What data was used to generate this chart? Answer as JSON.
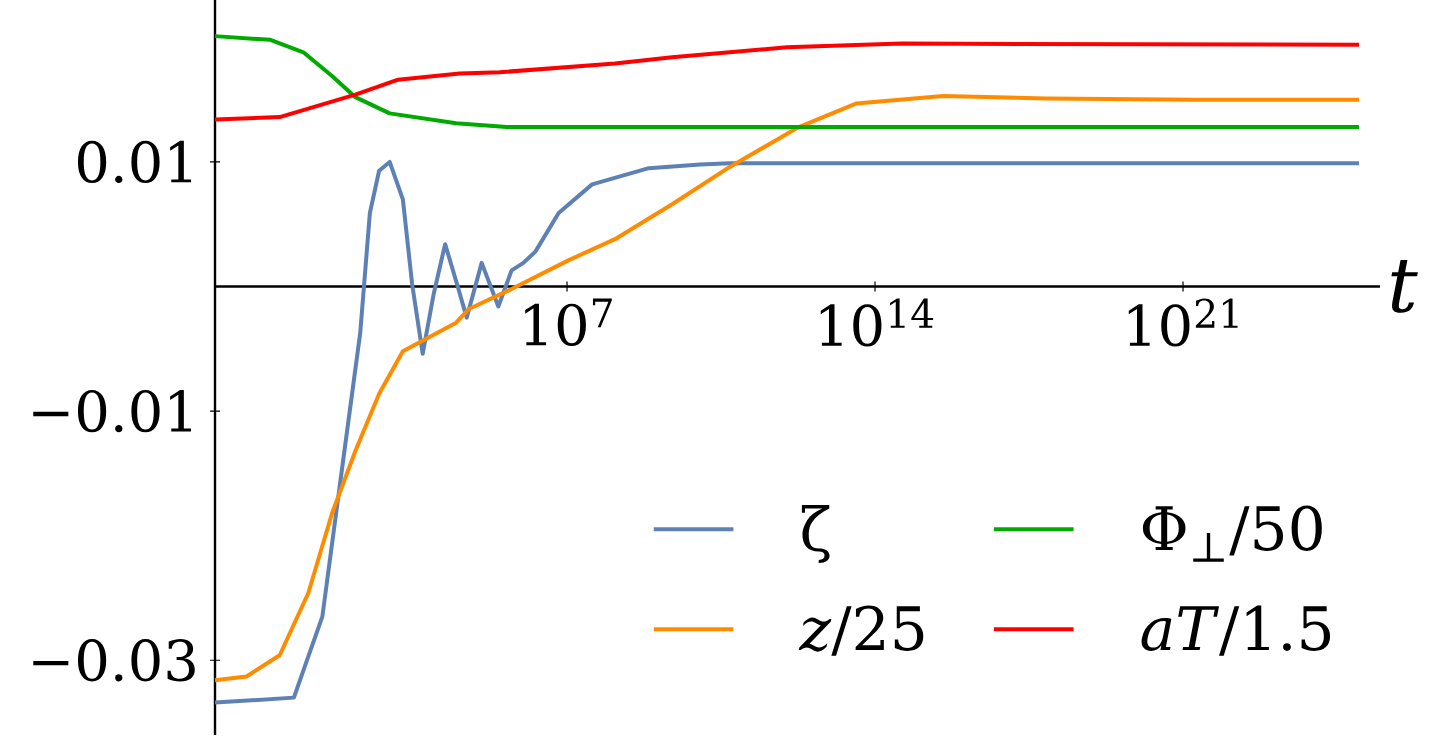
{
  "chart_data": {
    "type": "line",
    "xlabel": "t",
    "log": "x",
    "legend": "bottom right",
    "xlim": [
      0.1,
      3e+25
    ],
    "ylim": [
      -0.036,
      0.023
    ],
    "xticks": [
      {
        "value": 10000000.0,
        "label": "10$^{7}$"
      },
      {
        "value": 100000000000000.0,
        "label": "10$^{14}$"
      },
      {
        "value": 1e+21,
        "label": "10$^{21}$"
      }
    ],
    "yticks": [
      {
        "value": -0.03,
        "label": "−0.03"
      },
      {
        "value": -0.01,
        "label": "−0.01"
      },
      0.01
    ],
    "series": [
      {
        "name": "ζ",
        "color": "#5e81b5",
        "x": [
          0.1,
          6.2,
          27.5,
          74,
          200,
          331,
          537,
          933,
          1860,
          3020,
          5250,
          9330,
          17000,
          31600,
          52500,
          115000,
          275000,
          550000,
          1020000,
          1910000,
          6460000,
          37200000,
          724000000,
          10700000000,
          50000000000,
          1000000000000,
          1e+25
        ],
        "values": [
          -0.0334,
          -0.033,
          -0.0265,
          -0.0151,
          -0.0037,
          0.0059,
          0.0093,
          0.01,
          0.007,
          0.0002,
          -0.0054,
          -0.0006,
          0.0034,
          0.0002,
          -0.0025,
          0.0019,
          -0.0016,
          0.0013,
          0.0019,
          0.0028,
          0.0059,
          0.0082,
          0.0095,
          0.0098,
          0.0099,
          0.0099,
          0.0099
        ]
      },
      {
        "name": "*z*/25",
        "color": "#ff8c00",
        "x": [
          0.1,
          0.52,
          2.95,
          13.2,
          45.7,
          155,
          537,
          1860,
          30200,
          58900,
          550000,
          10700000,
          123000000,
          2450000000,
          50000000000,
          1860000000000,
          38000000000000,
          3470000000000000,
          760000000000000000,
          2e+21,
          1e+25
        ],
        "values": [
          -0.0316,
          -0.0313,
          -0.0296,
          -0.0246,
          -0.0182,
          -0.0132,
          -0.0086,
          -0.0052,
          -0.0029,
          -0.0018,
          -0.0002,
          0.0021,
          0.0038,
          0.0066,
          0.0096,
          0.0128,
          0.0147,
          0.0153,
          0.0151,
          0.015,
          0.015
        ]
      },
      {
        "name": "Φ$_{⊥}$/50",
        "color": "#00aa00",
        "x": [
          0.1,
          1.82,
          10.2,
          45.7,
          155,
          933,
          30200,
          427000,
          1e+25
        ],
        "values": [
          0.0201,
          0.0198,
          0.0188,
          0.0169,
          0.0152,
          0.0139,
          0.0131,
          0.0128,
          0.0128
        ]
      },
      {
        "name": "*aT*/1.5",
        "color": "#ff0000",
        "x": [
          0.1,
          2.95,
          21.4,
          155,
          1450,
          36300,
          295000,
          123000000,
          2450000000,
          1000000000000,
          400000000000000,
          1e+25
        ],
        "values": [
          0.0134,
          0.0136,
          0.0145,
          0.0154,
          0.0166,
          0.0171,
          0.0172,
          0.0179,
          0.0184,
          0.0192,
          0.0195,
          0.0194
        ]
      }
    ]
  }
}
